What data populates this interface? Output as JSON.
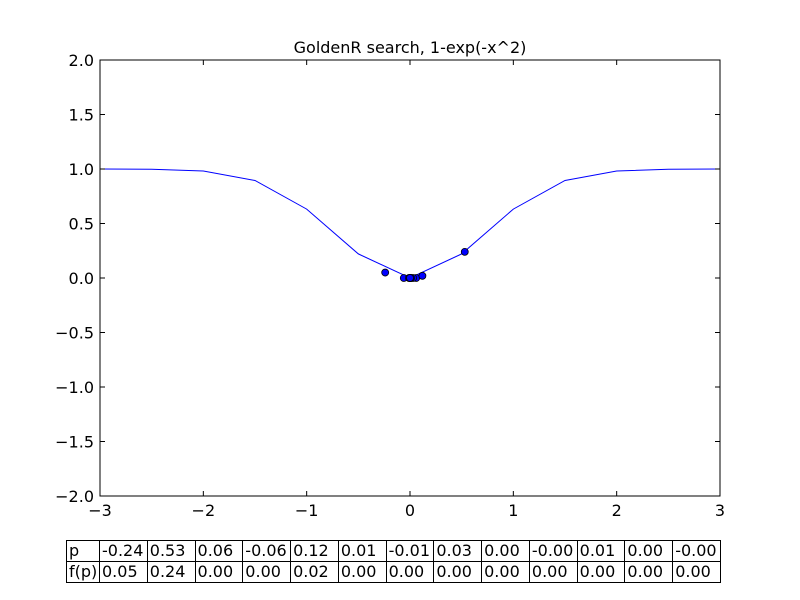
{
  "chart_data": {
    "type": "line",
    "title": "GoldenR search, 1-exp(-x^2)",
    "xlabel": "",
    "ylabel": "",
    "xlim": [
      -3,
      3
    ],
    "ylim": [
      -2,
      2
    ],
    "grid": false,
    "x_ticks": [
      -3,
      -2,
      -1,
      0,
      1,
      2,
      3
    ],
    "x_tick_labels": [
      "−3",
      "−2",
      "−1",
      "0",
      "1",
      "2",
      "3"
    ],
    "y_ticks": [
      2.0,
      1.5,
      1.0,
      0.5,
      0.0,
      -0.5,
      -1.0,
      -1.5,
      -2.0
    ],
    "y_tick_labels": [
      "2.0",
      "1.5",
      "1.0",
      "0.5",
      "0.0",
      "−0.5",
      "−1.0",
      "−1.5",
      "−2.0"
    ],
    "series": [
      {
        "type": "line",
        "color": "#0000ff",
        "x": [
          -3.0,
          -2.5,
          -2.0,
          -1.5,
          -1.0,
          -0.5,
          0.0,
          0.5,
          1.0,
          1.5,
          2.0,
          2.5,
          3.0
        ],
        "y": [
          0.9999,
          0.9981,
          0.9817,
          0.8946,
          0.6321,
          0.2212,
          0.0,
          0.2212,
          0.6321,
          0.8946,
          0.9817,
          0.9981,
          0.9999
        ]
      },
      {
        "type": "scatter",
        "color": "#0000ff",
        "x": [
          -0.24,
          0.53,
          0.06,
          -0.06,
          0.12,
          0.01,
          -0.01,
          0.03,
          0.0,
          -0.0,
          0.01,
          0.0,
          -0.0
        ],
        "y": [
          0.05,
          0.24,
          0.0,
          0.0,
          0.02,
          0.0,
          0.0,
          0.0,
          0.0,
          0.0,
          0.0,
          0.0,
          0.0
        ]
      }
    ],
    "table": {
      "rows": [
        {
          "label": "p",
          "cells": [
            "-0.24",
            "0.53",
            "0.06",
            "-0.06",
            "0.12",
            "0.01",
            "-0.01",
            "0.03",
            "0.00",
            "-0.00",
            "0.01",
            "0.00",
            "-0.00"
          ]
        },
        {
          "label": "f(p)",
          "cells": [
            "0.05",
            "0.24",
            "0.00",
            "0.00",
            "0.02",
            "0.00",
            "0.00",
            "0.00",
            "0.00",
            "0.00",
            "0.00",
            "0.00",
            "0.00"
          ]
        }
      ]
    }
  }
}
